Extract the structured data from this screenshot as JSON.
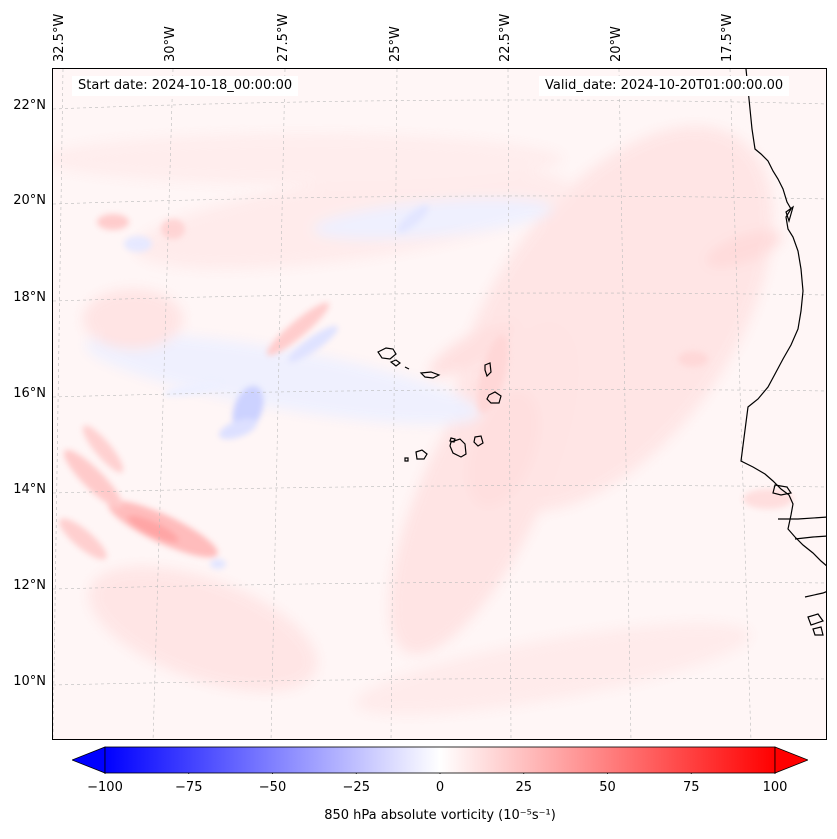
{
  "map": {
    "start_date_text": "Start date: 2024-10-18_00:00:00",
    "valid_date_text": "Valid_date: 2024-10-20T01:00:00.00",
    "variable": "850 hPa absolute vorticity",
    "units": "(10⁻⁵s⁻¹)",
    "lon_ticks": [
      "32.5°W",
      "30°W",
      "27.5°W",
      "25°W",
      "22.5°W",
      "20°W",
      "17.5°W"
    ],
    "lat_ticks": [
      "22°N",
      "20°N",
      "18°N",
      "16°N",
      "14°N",
      "12°N",
      "10°N"
    ],
    "colorbar": {
      "min": -100,
      "max": 100,
      "ticks": [
        "−100",
        "−75",
        "−50",
        "−25",
        "0",
        "25",
        "50",
        "75",
        "100"
      ],
      "negative_color": "#0000ff",
      "neutral_color": "#ffffff",
      "positive_color": "#ff0000",
      "extend": "both"
    },
    "coastline_color": "#000000",
    "gridline_color": "#bbbbbb"
  }
}
